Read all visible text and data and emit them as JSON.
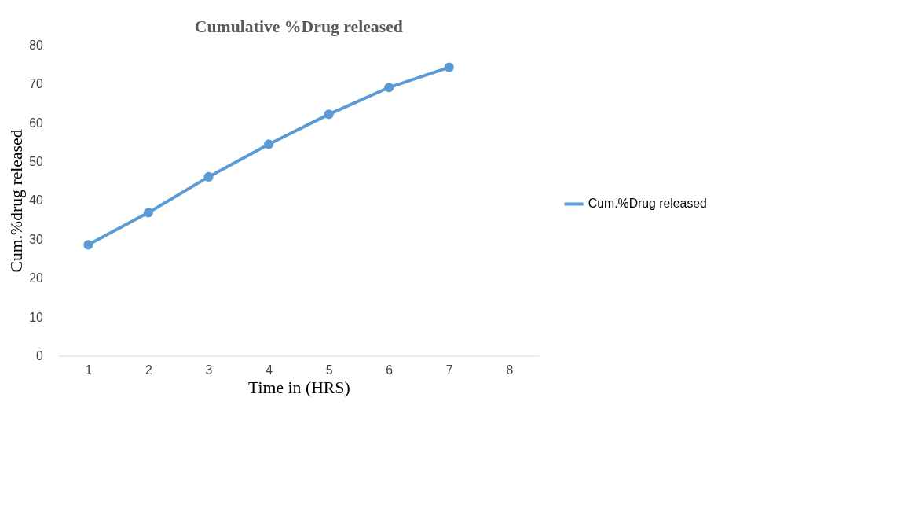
{
  "chart_data": {
    "type": "line",
    "title": "Cumulative %Drug released",
    "xlabel": "Time in (HRS)",
    "ylabel": "Cum.%drug released",
    "categories": [
      "1",
      "2",
      "3",
      "4",
      "5",
      "6",
      "7",
      "8"
    ],
    "series": [
      {
        "name": "Cum.%Drug released",
        "color": "#5b9bd5",
        "values": [
          28.6,
          36.9,
          46.1,
          54.5,
          62.2,
          69.1,
          74.3,
          null
        ]
      }
    ],
    "ylim": [
      0,
      80
    ],
    "yticks": [
      0,
      10,
      20,
      30,
      40,
      50,
      60,
      70,
      80
    ],
    "grid": false,
    "legend": "right",
    "marker": "circle",
    "line_style": "solid"
  }
}
